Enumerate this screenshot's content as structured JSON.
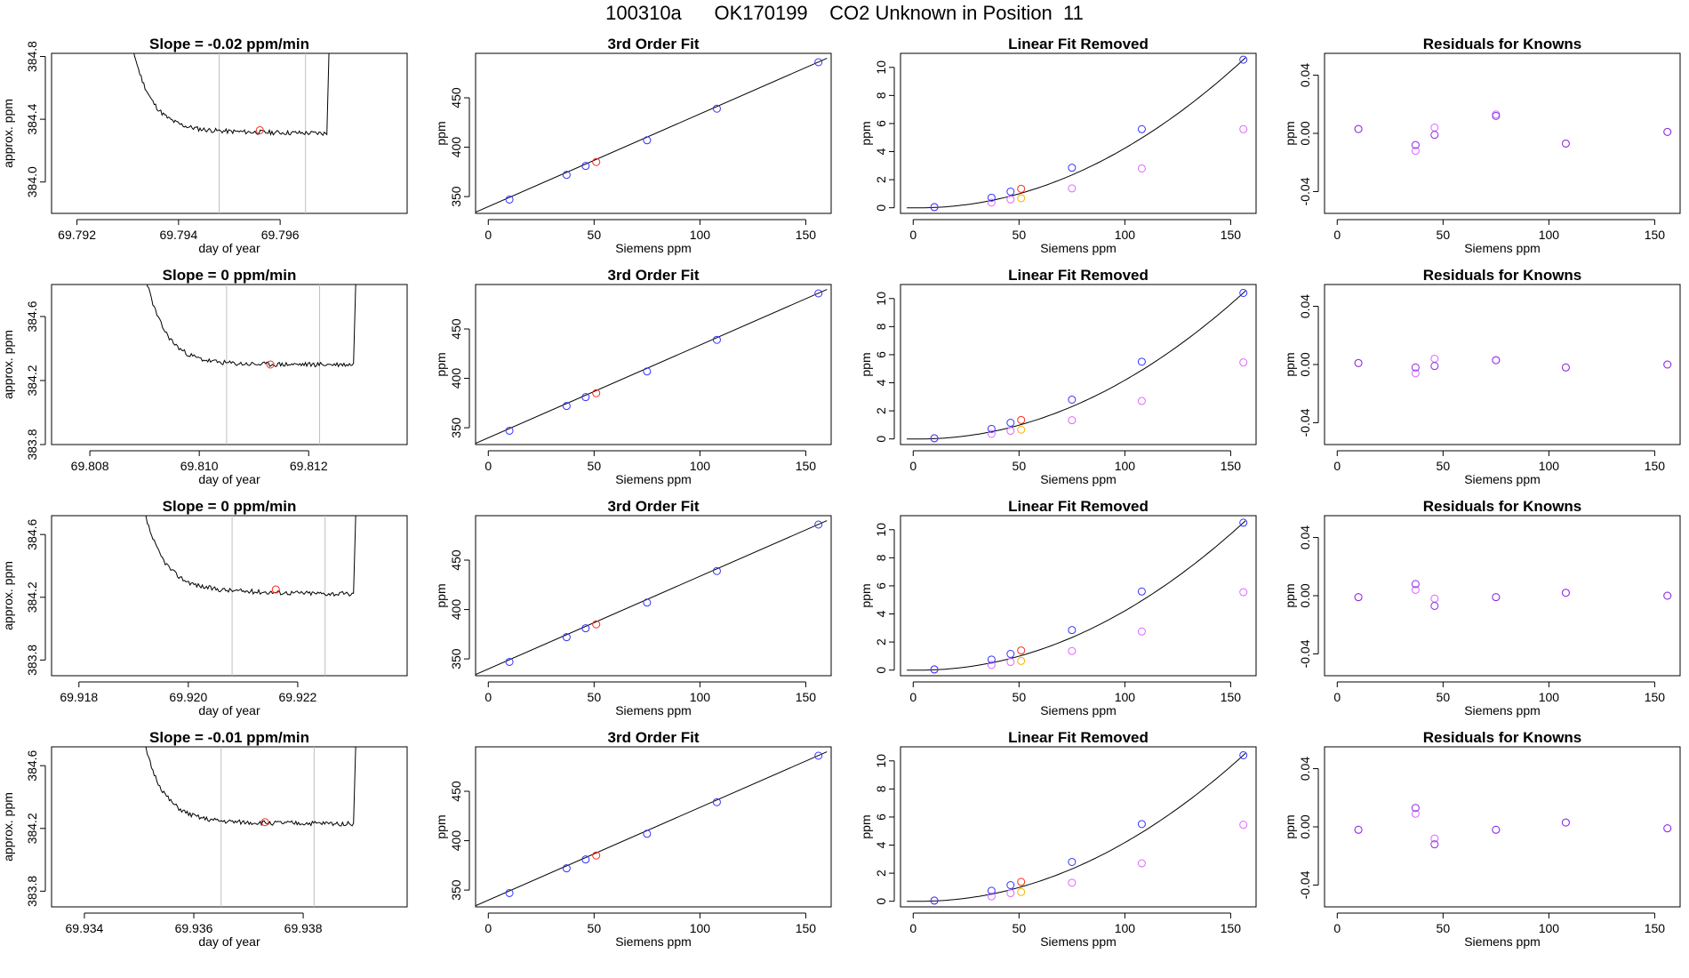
{
  "title": "100310a      OK170199    CO2 Unknown in Position  11",
  "colors": {
    "trace": "#000000",
    "line": "#000000",
    "marker_red": "#ff2a1a",
    "marker_blue": "#3333ff",
    "marker_violet": "#dd66ff",
    "marker_orange": "#ffb000",
    "marker_purple": "#8a2be2",
    "vline": "#bfbfbf",
    "axis": "#000000"
  },
  "chart_data": [
    {
      "type": "line",
      "title": "Slope =  -0.02  ppm/min",
      "xlabel": "day of year",
      "ylabel": "approx. ppm",
      "xlim": [
        69.7915,
        69.7985
      ],
      "ylim": [
        383.8,
        384.82
      ],
      "xticks": [
        69.792,
        69.794,
        69.796
      ],
      "xtick_labels": [
        "69.792",
        "69.794",
        "69.796"
      ],
      "yticks": [
        384.0,
        384.4,
        384.8
      ],
      "ytick_labels": [
        "384.0",
        "384.4",
        "384.8"
      ],
      "vlines": [
        69.7948,
        69.7965
      ],
      "marker": {
        "x": 69.7956,
        "y": 384.33
      },
      "trace": {
        "x_start": 69.7928,
        "x_end": 69.797,
        "start_y": 385.5,
        "floor": 384.33,
        "end_floor": 384.31,
        "seed": 11
      }
    },
    {
      "type": "scatter",
      "title": "3rd Order Fit",
      "xlabel": "Siemens ppm",
      "ylabel": "ppm",
      "xlim": [
        -6,
        162
      ],
      "ylim": [
        333,
        495
      ],
      "xticks": [
        0,
        50,
        100,
        150
      ],
      "xtick_labels": [
        "0",
        "50",
        "100",
        "150"
      ],
      "yticks": [
        350,
        400,
        450
      ],
      "ytick_labels": [
        "350",
        "400",
        "450"
      ],
      "x": [
        10,
        37,
        46,
        75,
        108,
        156
      ],
      "y": [
        347,
        372,
        381,
        407,
        439,
        486
      ],
      "unknown": {
        "x": 51,
        "y": 385
      }
    },
    {
      "type": "scatter",
      "title": "Linear Fit Removed",
      "xlabel": "Siemens ppm",
      "ylabel": "ppm",
      "xlim": [
        -6,
        162
      ],
      "ylim": [
        -0.4,
        11.0
      ],
      "xticks": [
        0,
        50,
        100,
        150
      ],
      "xtick_labels": [
        "0",
        "50",
        "100",
        "150"
      ],
      "yticks": [
        0,
        2,
        4,
        6,
        8,
        10
      ],
      "ytick_labels": [
        "0",
        "2",
        "4",
        "6",
        "8",
        "10"
      ],
      "x": [
        10,
        37,
        46,
        75,
        108,
        156
      ],
      "y": [
        0.05,
        0.72,
        1.15,
        2.85,
        5.6,
        10.55
      ],
      "y_alt": [
        0.04,
        0.37,
        0.6,
        1.38,
        2.8,
        5.6
      ],
      "unknown": {
        "x": 51,
        "y": 1.35
      },
      "unknown_alt": {
        "x": 51,
        "y": 0.68
      }
    },
    {
      "type": "scatter",
      "title": "Residuals for Knowns",
      "xlabel": "Siemens ppm",
      "ylabel": "ppm",
      "xlim": [
        -6,
        162
      ],
      "ylim": [
        -0.055,
        0.055
      ],
      "xticks": [
        0,
        50,
        100,
        150
      ],
      "xtick_labels": [
        "0",
        "50",
        "100",
        "150"
      ],
      "yticks": [
        -0.04,
        0.0,
        0.04
      ],
      "ytick_labels": [
        "-0.04",
        "0.00",
        "0.04"
      ],
      "x": [
        10,
        37,
        46,
        75,
        108,
        156
      ],
      "y": [
        0.003,
        -0.008,
        -0.001,
        0.012,
        -0.007,
        0.001
      ],
      "y_alt": [
        0.003,
        -0.012,
        0.004,
        0.013,
        -0.007,
        0.001
      ]
    },
    {
      "type": "line",
      "title": "Slope =  0  ppm/min",
      "xlabel": "day of year",
      "ylabel": "approx. ppm",
      "xlim": [
        69.8073,
        69.8138
      ],
      "ylim": [
        383.8,
        384.8
      ],
      "xticks": [
        69.808,
        69.81,
        69.812
      ],
      "xtick_labels": [
        "69.808",
        "69.810",
        "69.812"
      ],
      "yticks": [
        383.8,
        384.2,
        384.6
      ],
      "ytick_labels": [
        "383.8",
        "384.2",
        "384.6"
      ],
      "vlines": [
        69.8105,
        69.8122
      ],
      "marker": {
        "x": 69.8113,
        "y": 384.3
      },
      "trace": {
        "x_start": 69.8088,
        "x_end": 69.8129,
        "start_y": 385.3,
        "floor": 384.3,
        "end_floor": 384.3,
        "seed": 23
      }
    },
    {
      "type": "scatter",
      "title": "3rd Order Fit",
      "xlabel": "Siemens ppm",
      "ylabel": "ppm",
      "xlim": [
        -6,
        162
      ],
      "ylim": [
        333,
        495
      ],
      "xticks": [
        0,
        50,
        100,
        150
      ],
      "xtick_labels": [
        "0",
        "50",
        "100",
        "150"
      ],
      "yticks": [
        350,
        400,
        450
      ],
      "ytick_labels": [
        "350",
        "400",
        "450"
      ],
      "x": [
        10,
        37,
        46,
        75,
        108,
        156
      ],
      "y": [
        347,
        372,
        381,
        407,
        439,
        486
      ],
      "unknown": {
        "x": 51,
        "y": 385
      }
    },
    {
      "type": "scatter",
      "title": "Linear Fit Removed",
      "xlabel": "Siemens ppm",
      "ylabel": "ppm",
      "xlim": [
        -6,
        162
      ],
      "ylim": [
        -0.4,
        11.0
      ],
      "xticks": [
        0,
        50,
        100,
        150
      ],
      "xtick_labels": [
        "0",
        "50",
        "100",
        "150"
      ],
      "yticks": [
        0,
        2,
        4,
        6,
        8,
        10
      ],
      "ytick_labels": [
        "0",
        "2",
        "4",
        "6",
        "8",
        "10"
      ],
      "x": [
        10,
        37,
        46,
        75,
        108,
        156
      ],
      "y": [
        0.05,
        0.72,
        1.15,
        2.8,
        5.5,
        10.4
      ],
      "y_alt": [
        0.04,
        0.36,
        0.58,
        1.33,
        2.7,
        5.45
      ],
      "unknown": {
        "x": 51,
        "y": 1.35
      },
      "unknown_alt": {
        "x": 51,
        "y": 0.66
      }
    },
    {
      "type": "scatter",
      "title": "Residuals for Knowns",
      "xlabel": "Siemens ppm",
      "ylabel": "ppm",
      "xlim": [
        -6,
        162
      ],
      "ylim": [
        -0.055,
        0.055
      ],
      "xticks": [
        0,
        50,
        100,
        150
      ],
      "xtick_labels": [
        "0",
        "50",
        "100",
        "150"
      ],
      "yticks": [
        -0.04,
        0.0,
        0.04
      ],
      "ytick_labels": [
        "-0.04",
        "0.00",
        "0.04"
      ],
      "x": [
        10,
        37,
        46,
        75,
        108,
        156
      ],
      "y": [
        0.001,
        -0.002,
        -0.001,
        0.003,
        -0.002,
        0.0
      ],
      "y_alt": [
        0.001,
        -0.006,
        0.004,
        0.003,
        -0.002,
        0.0
      ]
    },
    {
      "type": "line",
      "title": "Slope =  0  ppm/min",
      "xlabel": "day of year",
      "ylabel": "approx. ppm",
      "xlim": [
        69.9175,
        69.924
      ],
      "ylim": [
        383.7,
        384.72
      ],
      "xticks": [
        69.918,
        69.92,
        69.922
      ],
      "xtick_labels": [
        "69.918",
        "69.920",
        "69.922"
      ],
      "yticks": [
        383.8,
        384.2,
        384.6
      ],
      "ytick_labels": [
        "383.8",
        "384.2",
        "384.6"
      ],
      "vlines": [
        69.9208,
        69.9225
      ],
      "marker": {
        "x": 69.9216,
        "y": 384.25
      },
      "trace": {
        "x_start": 69.919,
        "x_end": 69.9231,
        "start_y": 385.1,
        "floor": 384.25,
        "end_floor": 384.22,
        "seed": 37
      }
    },
    {
      "type": "scatter",
      "title": "3rd Order Fit",
      "xlabel": "Siemens ppm",
      "ylabel": "ppm",
      "xlim": [
        -6,
        162
      ],
      "ylim": [
        333,
        495
      ],
      "xticks": [
        0,
        50,
        100,
        150
      ],
      "xtick_labels": [
        "0",
        "50",
        "100",
        "150"
      ],
      "yticks": [
        350,
        400,
        450
      ],
      "ytick_labels": [
        "350",
        "400",
        "450"
      ],
      "x": [
        10,
        37,
        46,
        75,
        108,
        156
      ],
      "y": [
        347,
        372,
        381,
        407,
        439,
        486
      ],
      "unknown": {
        "x": 51,
        "y": 385
      }
    },
    {
      "type": "scatter",
      "title": "Linear Fit Removed",
      "xlabel": "Siemens ppm",
      "ylabel": "ppm",
      "xlim": [
        -6,
        162
      ],
      "ylim": [
        -0.4,
        11.0
      ],
      "xticks": [
        0,
        50,
        100,
        150
      ],
      "xtick_labels": [
        "0",
        "50",
        "100",
        "150"
      ],
      "yticks": [
        0,
        2,
        4,
        6,
        8,
        10
      ],
      "ytick_labels": [
        "0",
        "2",
        "4",
        "6",
        "8",
        "10"
      ],
      "x": [
        10,
        37,
        46,
        75,
        108,
        156
      ],
      "y": [
        0.05,
        0.75,
        1.15,
        2.85,
        5.6,
        10.5
      ],
      "y_alt": [
        0.04,
        0.37,
        0.58,
        1.36,
        2.75,
        5.55
      ],
      "unknown": {
        "x": 51,
        "y": 1.4
      },
      "unknown_alt": {
        "x": 51,
        "y": 0.65
      }
    },
    {
      "type": "scatter",
      "title": "Residuals for Knowns",
      "xlabel": "Siemens ppm",
      "ylabel": "ppm",
      "xlim": [
        -6,
        162
      ],
      "ylim": [
        -0.055,
        0.055
      ],
      "xticks": [
        0,
        50,
        100,
        150
      ],
      "xtick_labels": [
        "0",
        "50",
        "100",
        "150"
      ],
      "yticks": [
        -0.04,
        0.0,
        0.04
      ],
      "ytick_labels": [
        "-0.04",
        "0.00",
        "0.04"
      ],
      "x": [
        10,
        37,
        46,
        75,
        108,
        156
      ],
      "y": [
        -0.001,
        0.008,
        -0.007,
        -0.001,
        0.002,
        0.0
      ],
      "y_alt": [
        -0.001,
        0.004,
        -0.002,
        -0.001,
        0.002,
        0.0
      ]
    },
    {
      "type": "line",
      "title": "Slope =  -0.01  ppm/min",
      "xlabel": "day of year",
      "ylabel": "approx. ppm",
      "xlim": [
        69.9334,
        69.9399
      ],
      "ylim": [
        383.7,
        384.72
      ],
      "xticks": [
        69.934,
        69.936,
        69.938
      ],
      "xtick_labels": [
        "69.934",
        "69.936",
        "69.938"
      ],
      "yticks": [
        383.8,
        384.2,
        384.6
      ],
      "ytick_labels": [
        "383.8",
        "384.2",
        "384.6"
      ],
      "vlines": [
        69.9365,
        69.9382
      ],
      "marker": {
        "x": 69.9373,
        "y": 384.24
      },
      "trace": {
        "x_start": 69.9349,
        "x_end": 69.939,
        "start_y": 385.1,
        "floor": 384.24,
        "end_floor": 384.23,
        "seed": 51
      }
    },
    {
      "type": "scatter",
      "title": "3rd Order Fit",
      "xlabel": "Siemens ppm",
      "ylabel": "ppm",
      "xlim": [
        -6,
        162
      ],
      "ylim": [
        333,
        495
      ],
      "xticks": [
        0,
        50,
        100,
        150
      ],
      "xtick_labels": [
        "0",
        "50",
        "100",
        "150"
      ],
      "yticks": [
        350,
        400,
        450
      ],
      "ytick_labels": [
        "350",
        "400",
        "450"
      ],
      "x": [
        10,
        37,
        46,
        75,
        108,
        156
      ],
      "y": [
        347,
        372,
        381,
        407,
        439,
        486
      ],
      "unknown": {
        "x": 51,
        "y": 385
      }
    },
    {
      "type": "scatter",
      "title": "Linear Fit Removed",
      "xlabel": "Siemens ppm",
      "ylabel": "ppm",
      "xlim": [
        -6,
        162
      ],
      "ylim": [
        -0.4,
        11.0
      ],
      "xticks": [
        0,
        50,
        100,
        150
      ],
      "xtick_labels": [
        "0",
        "50",
        "100",
        "150"
      ],
      "yticks": [
        0,
        2,
        4,
        6,
        8,
        10
      ],
      "ytick_labels": [
        "0",
        "2",
        "4",
        "6",
        "8",
        "10"
      ],
      "x": [
        10,
        37,
        46,
        75,
        108,
        156
      ],
      "y": [
        0.05,
        0.75,
        1.15,
        2.8,
        5.5,
        10.4
      ],
      "y_alt": [
        0.04,
        0.35,
        0.58,
        1.32,
        2.7,
        5.45
      ],
      "unknown": {
        "x": 51,
        "y": 1.38
      },
      "unknown_alt": {
        "x": 51,
        "y": 0.66
      }
    },
    {
      "type": "scatter",
      "title": "Residuals for Knowns",
      "xlabel": "Siemens ppm",
      "ylabel": "ppm",
      "xlim": [
        -6,
        162
      ],
      "ylim": [
        -0.055,
        0.055
      ],
      "xticks": [
        0,
        50,
        100,
        150
      ],
      "xtick_labels": [
        "0",
        "50",
        "100",
        "150"
      ],
      "yticks": [
        -0.04,
        0.0,
        0.04
      ],
      "ytick_labels": [
        "-0.04",
        "0.00",
        "0.04"
      ],
      "x": [
        10,
        37,
        46,
        75,
        108,
        156
      ],
      "y": [
        -0.002,
        0.013,
        -0.012,
        -0.002,
        0.003,
        -0.001
      ],
      "y_alt": [
        -0.002,
        0.009,
        -0.008,
        -0.002,
        0.003,
        -0.001
      ]
    }
  ]
}
